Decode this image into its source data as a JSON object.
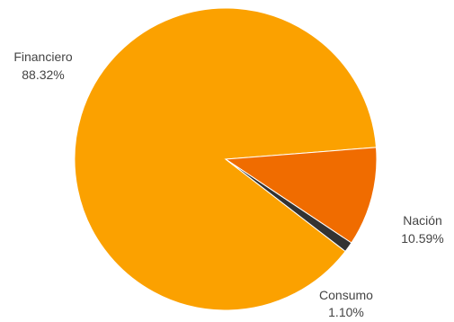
{
  "chart_data": {
    "type": "pie",
    "title": "",
    "slices": [
      {
        "label": "Financiero",
        "value": 88.32,
        "value_label": "88.32%",
        "color": "#FBA100"
      },
      {
        "label": "Nación",
        "value": 10.59,
        "value_label": "10.59%",
        "color": "#F06C00"
      },
      {
        "label": "Consumo",
        "value": 1.1,
        "value_label": "1.10%",
        "color": "#333333"
      }
    ],
    "legend": "none"
  }
}
